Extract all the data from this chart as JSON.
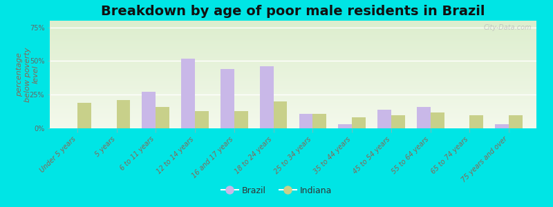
{
  "title": "Breakdown by age of poor male residents in Brazil",
  "ylabel": "percentage\nbelow poverty\nlevel",
  "categories": [
    "Under 5 years",
    "5 years",
    "6 to 11 years",
    "12 to 14 years",
    "16 and 17 years",
    "18 to 24 years",
    "25 to 34 years",
    "35 to 44 years",
    "45 to 54 years",
    "55 to 64 years",
    "65 to 74 years",
    "75 years and over"
  ],
  "brazil_values": [
    0,
    0,
    27,
    52,
    44,
    46,
    11,
    3,
    14,
    16,
    0,
    3
  ],
  "indiana_values": [
    19,
    21,
    16,
    13,
    13,
    20,
    11,
    8,
    10,
    12,
    10,
    10
  ],
  "brazil_color": "#c9b8e8",
  "indiana_color": "#c8d08a",
  "outer_bg": "#00e5e5",
  "ylim": [
    0,
    80
  ],
  "yticks": [
    0,
    25,
    50,
    75
  ],
  "ytick_labels": [
    "0%",
    "25%",
    "50%",
    "75%"
  ],
  "bar_width": 0.35,
  "title_fontsize": 14,
  "axis_label_fontsize": 8,
  "tick_fontsize": 7,
  "legend_fontsize": 9,
  "watermark": "City-Data.com",
  "tick_color": "#886655",
  "ylabel_color": "#886655",
  "ytick_color": "#666666"
}
